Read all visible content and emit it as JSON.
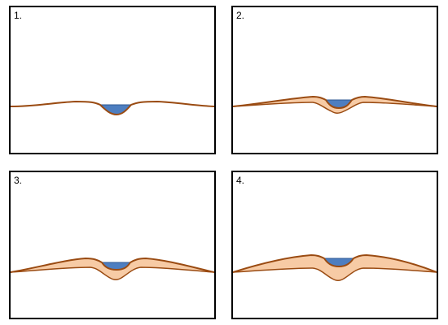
{
  "colors": {
    "outline": "#000000",
    "ground_line": "#9a4b12",
    "levee_fill": "#f7cba5",
    "water": "#4d7ec0",
    "water_edge": "#2f5a93"
  },
  "panels": [
    {
      "label": "1."
    },
    {
      "label": "2."
    },
    {
      "label": "3."
    },
    {
      "label": "4."
    }
  ]
}
